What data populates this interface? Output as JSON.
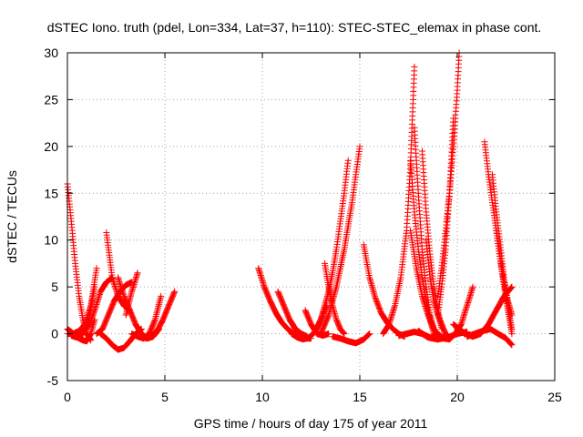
{
  "chart_data": {
    "type": "scatter",
    "title": "dSTEC Iono. truth (pdel, Lon=334, Lat=37, h=110): STEC-STEC_elemax in phase cont.",
    "xlabel": "GPS time / hours of day 175 of year 2011",
    "ylabel": "dSTEC  / TECUs",
    "xlim": [
      0,
      25
    ],
    "ylim": [
      -5,
      30
    ],
    "xticks": [
      0,
      5,
      10,
      15,
      20,
      25
    ],
    "yticks": [
      -5,
      0,
      5,
      10,
      15,
      20,
      25,
      30
    ],
    "grid": true,
    "marker": "plus",
    "color": "#ff0000",
    "series": [
      {
        "x": [
          0.0,
          0.2,
          0.4,
          0.6,
          0.8,
          1.0,
          1.2
        ],
        "y": [
          16.0,
          12.0,
          7.5,
          4.0,
          1.5,
          0.0,
          -0.7
        ]
      },
      {
        "x": [
          0.0,
          0.2,
          0.4,
          0.6,
          0.8,
          1.0,
          1.2,
          1.4
        ],
        "y": [
          0.5,
          0.2,
          -0.2,
          -0.5,
          -0.7,
          -0.8,
          0.0,
          1.5
        ]
      },
      {
        "x": [
          0.0,
          0.3,
          0.6,
          0.9,
          1.2,
          1.5
        ],
        "y": [
          0.0,
          0.0,
          0.3,
          1.0,
          3.0,
          7.0
        ]
      },
      {
        "x": [
          0.2,
          0.5,
          0.8,
          1.1,
          1.4
        ],
        "y": [
          -0.2,
          -0.4,
          0.0,
          1.5,
          5.0
        ]
      },
      {
        "x": [
          0.8,
          1.1,
          1.4,
          1.7,
          2.0,
          2.3
        ],
        "y": [
          0.3,
          0.8,
          2.5,
          4.5,
          5.5,
          6.0
        ]
      },
      {
        "x": [
          2.0,
          2.3,
          2.6,
          2.9,
          3.2
        ],
        "y": [
          10.8,
          6.0,
          4.0,
          3.0,
          2.5
        ]
      },
      {
        "x": [
          1.5,
          1.8,
          2.1,
          2.4,
          2.7,
          3.0,
          3.3
        ],
        "y": [
          0.0,
          0.5,
          2.0,
          3.5,
          4.5,
          5.2,
          5.5
        ]
      },
      {
        "x": [
          1.7,
          2.0,
          2.3,
          2.6,
          2.9,
          3.2,
          3.5,
          3.8
        ],
        "y": [
          0.0,
          -0.5,
          -1.2,
          -1.7,
          -1.5,
          -0.8,
          0.0,
          0.5
        ]
      },
      {
        "x": [
          2.6,
          2.9,
          3.2,
          3.5,
          3.8,
          4.1,
          4.4,
          4.7
        ],
        "y": [
          6.0,
          4.0,
          2.5,
          1.0,
          0.0,
          -0.5,
          -0.3,
          0.5
        ]
      },
      {
        "x": [
          3.0,
          3.3,
          3.6
        ],
        "y": [
          2.0,
          4.5,
          6.5
        ]
      },
      {
        "x": [
          3.3,
          3.6,
          3.9,
          4.2,
          4.5,
          4.8
        ],
        "y": [
          0.0,
          -0.3,
          -0.5,
          0.0,
          1.5,
          4.0
        ]
      },
      {
        "x": [
          4.0,
          4.3,
          4.6,
          4.9,
          5.2,
          5.5
        ],
        "y": [
          -0.5,
          -0.2,
          0.3,
          1.5,
          3.0,
          4.5
        ]
      },
      {
        "x": [
          9.8,
          10.1,
          10.4,
          10.7,
          11.0,
          11.3,
          11.6,
          11.9,
          12.2,
          12.5
        ],
        "y": [
          7.0,
          5.0,
          3.5,
          2.2,
          1.2,
          0.5,
          0.0,
          -0.3,
          -0.5,
          -0.5
        ]
      },
      {
        "x": [
          10.8,
          11.1,
          11.4,
          11.7,
          12.0,
          12.3
        ],
        "y": [
          4.5,
          3.0,
          1.5,
          0.5,
          0.0,
          -0.3
        ]
      },
      {
        "x": [
          11.5,
          11.8,
          12.1,
          12.4,
          12.7,
          13.0,
          13.3
        ],
        "y": [
          0.0,
          -0.4,
          -0.6,
          -0.4,
          0.2,
          1.5,
          3.0
        ]
      },
      {
        "x": [
          12.2,
          12.5,
          12.8,
          13.1,
          13.4
        ],
        "y": [
          2.5,
          1.0,
          0.0,
          -0.2,
          0.0
        ]
      },
      {
        "x": [
          12.8,
          13.0,
          13.2,
          13.4,
          13.6,
          13.8,
          14.0,
          14.2,
          14.4
        ],
        "y": [
          0.5,
          1.5,
          3.0,
          4.5,
          6.5,
          9.0,
          12.0,
          15.0,
          18.5
        ]
      },
      {
        "x": [
          13.0,
          13.2,
          13.4,
          13.6,
          13.8,
          14.0,
          14.2,
          14.4,
          14.6,
          14.8,
          15.0
        ],
        "y": [
          0.0,
          1.0,
          2.0,
          3.5,
          5.0,
          7.0,
          9.0,
          11.5,
          14.0,
          17.0,
          20.0
        ]
      },
      {
        "x": [
          13.2,
          13.4,
          13.6,
          13.8,
          14.0,
          14.2
        ],
        "y": [
          7.5,
          5.0,
          3.0,
          1.5,
          0.5,
          0.0
        ]
      },
      {
        "x": [
          13.6,
          14.0,
          14.4,
          14.8,
          15.2,
          15.5
        ],
        "y": [
          -0.3,
          -0.5,
          -0.8,
          -1.0,
          -0.6,
          0.0
        ]
      },
      {
        "x": [
          15.2,
          15.5,
          15.8,
          16.1,
          16.4,
          16.7,
          17.0,
          17.3
        ],
        "y": [
          9.5,
          6.0,
          3.8,
          2.2,
          1.2,
          0.5,
          0.0,
          -0.3
        ]
      },
      {
        "x": [
          16.2,
          16.5,
          16.8,
          17.1,
          17.4,
          17.6,
          17.8
        ],
        "y": [
          0.0,
          1.0,
          3.0,
          6.0,
          11.0,
          18.0,
          28.5
        ]
      },
      {
        "x": [
          17.6,
          17.8,
          18.0,
          18.2,
          18.4,
          18.6,
          18.8,
          19.0
        ],
        "y": [
          18.5,
          13.0,
          9.0,
          6.0,
          3.5,
          1.5,
          0.0,
          -0.5
        ]
      },
      {
        "x": [
          17.8,
          18.0,
          18.2,
          18.4,
          18.6,
          18.8
        ],
        "y": [
          22.0,
          15.0,
          9.0,
          5.0,
          2.0,
          0.5
        ]
      },
      {
        "x": [
          18.2,
          18.4,
          18.6,
          18.8,
          19.0,
          19.2
        ],
        "y": [
          19.5,
          13.0,
          8.5,
          5.0,
          2.5,
          0.5
        ]
      },
      {
        "x": [
          17.6,
          17.9,
          18.2,
          18.5,
          18.8,
          19.1
        ],
        "y": [
          11.0,
          7.0,
          4.0,
          2.0,
          0.5,
          -0.3
        ]
      },
      {
        "x": [
          18.4,
          18.6,
          18.8,
          19.0,
          19.2,
          19.4,
          19.6
        ],
        "y": [
          10.0,
          6.0,
          3.5,
          2.0,
          1.0,
          0.0,
          -0.4
        ]
      },
      {
        "x": [
          17.0,
          17.4,
          17.8,
          18.2,
          18.6,
          19.0,
          19.4
        ],
        "y": [
          -0.2,
          0.0,
          0.2,
          0.0,
          -0.4,
          -0.6,
          -0.3
        ]
      },
      {
        "x": [
          18.0,
          18.5,
          19.0,
          19.5,
          20.0,
          20.5
        ],
        "y": [
          0.3,
          -0.4,
          -0.6,
          -0.4,
          0.0,
          0.2
        ]
      },
      {
        "x": [
          19.0,
          19.2,
          19.4,
          19.6,
          19.8,
          20.0,
          20.1
        ],
        "y": [
          4.0,
          7.0,
          11.0,
          15.0,
          20.0,
          26.0,
          30.0
        ]
      },
      {
        "x": [
          19.0,
          19.2,
          19.4,
          19.6,
          19.8
        ],
        "y": [
          2.0,
          5.0,
          9.0,
          15.0,
          23.0
        ]
      },
      {
        "x": [
          19.0,
          19.3,
          19.6,
          19.9,
          20.2,
          20.5,
          20.8
        ],
        "y": [
          0.0,
          -0.5,
          -0.6,
          0.0,
          1.0,
          3.0,
          5.0
        ]
      },
      {
        "x": [
          19.8,
          20.1,
          20.4,
          20.7
        ],
        "y": [
          1.0,
          0.5,
          0.0,
          -0.2
        ]
      },
      {
        "x": [
          20.0,
          20.4,
          20.8,
          21.2,
          21.6,
          22.0,
          22.4,
          22.8
        ],
        "y": [
          0.5,
          0.0,
          -0.3,
          0.0,
          1.0,
          2.5,
          4.0,
          5.0
        ]
      },
      {
        "x": [
          20.5,
          20.9,
          21.3,
          21.7,
          22.1,
          22.5,
          22.8
        ],
        "y": [
          -0.3,
          0.0,
          0.3,
          0.5,
          0.0,
          -0.5,
          -1.2
        ]
      },
      {
        "x": [
          21.4,
          21.6,
          21.8,
          22.0,
          22.2,
          22.4,
          22.6,
          22.8
        ],
        "y": [
          20.5,
          17.0,
          14.0,
          11.0,
          8.0,
          5.5,
          3.5,
          2.0
        ]
      },
      {
        "x": [
          21.8,
          22.0,
          22.2,
          22.4,
          22.6,
          22.8
        ],
        "y": [
          17.0,
          13.0,
          9.5,
          6.0,
          3.0,
          0.5
        ]
      },
      {
        "x": [
          22.0,
          22.2,
          22.4,
          22.6,
          22.8
        ],
        "y": [
          11.0,
          8.0,
          5.0,
          2.5,
          0.0
        ]
      }
    ]
  }
}
